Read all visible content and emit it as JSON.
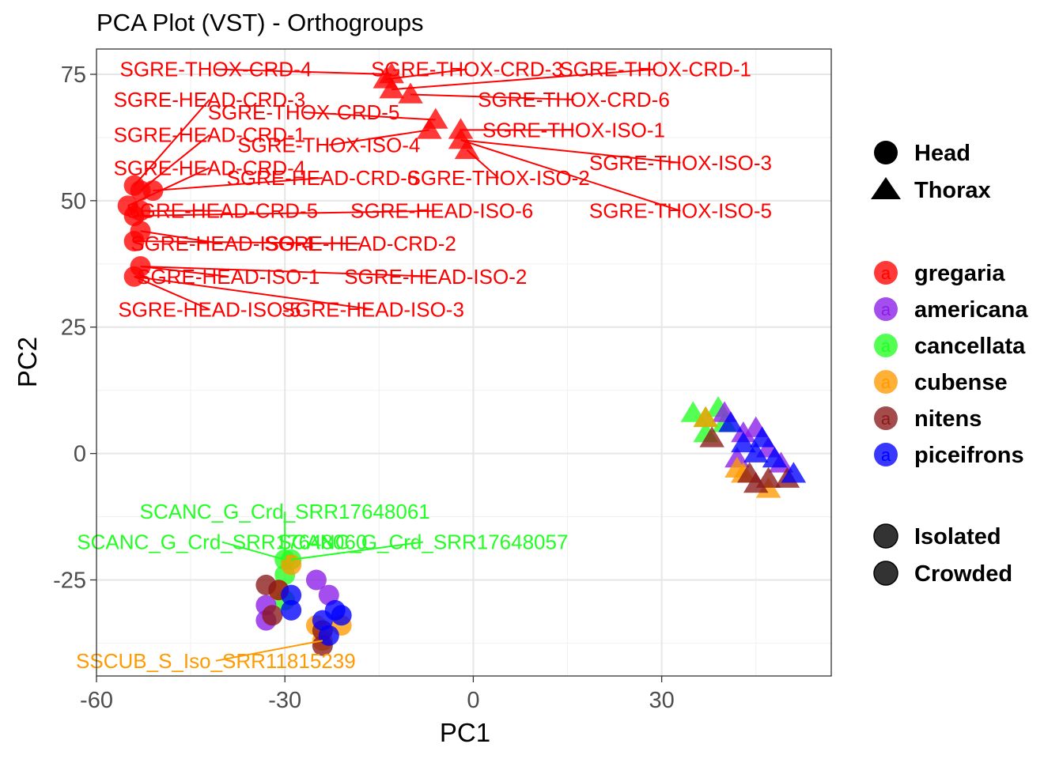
{
  "chart_data": {
    "type": "scatter",
    "title": "PCA Plot (VST) - Orthogroups",
    "xlabel": "PC1",
    "ylabel": "PC2",
    "xlim": [
      -60,
      57
    ],
    "ylim": [
      -44,
      80
    ],
    "grid": true,
    "x_ticks": [
      -60,
      -30,
      0,
      30
    ],
    "x_tick_labels": [
      "-60",
      "-30",
      "0",
      "30"
    ],
    "y_ticks": [
      -25,
      0,
      25,
      50,
      75
    ],
    "y_tick_labels": [
      "-25",
      "0",
      "25",
      "50",
      "75"
    ],
    "legend_placement": "right",
    "colors": {
      "gregaria": "#ff0000",
      "americana": "#8a1ee8",
      "cancellata": "#22ff22",
      "cubense": "#ff9a00",
      "nitens": "#8b1a1a",
      "piceifrons": "#0000ff"
    },
    "legends": {
      "tissue": [
        {
          "label": "Head",
          "shape": "circle"
        },
        {
          "label": "Thorax",
          "shape": "triangle"
        }
      ],
      "species": [
        {
          "label": "gregaria",
          "key": "gregaria"
        },
        {
          "label": "americana",
          "key": "americana"
        },
        {
          "label": "cancellata",
          "key": "cancellata"
        },
        {
          "label": "cubense",
          "key": "cubense"
        },
        {
          "label": "nitens",
          "key": "nitens"
        },
        {
          "label": "piceifrons",
          "key": "piceifrons"
        }
      ],
      "phase": [
        {
          "label": "Isolated",
          "shape": "circle"
        },
        {
          "label": "Crowded",
          "shape": "circle"
        }
      ]
    },
    "points": [
      {
        "x": -13,
        "y": 75,
        "shape": "triangle",
        "species": "gregaria"
      },
      {
        "x": -14,
        "y": 74,
        "shape": "triangle",
        "species": "gregaria"
      },
      {
        "x": -13,
        "y": 72,
        "shape": "triangle",
        "species": "gregaria"
      },
      {
        "x": -10,
        "y": 71,
        "shape": "triangle",
        "species": "gregaria"
      },
      {
        "x": -6,
        "y": 66,
        "shape": "triangle",
        "species": "gregaria"
      },
      {
        "x": -7,
        "y": 64,
        "shape": "triangle",
        "species": "gregaria"
      },
      {
        "x": -2,
        "y": 64,
        "shape": "triangle",
        "species": "gregaria"
      },
      {
        "x": -2,
        "y": 62,
        "shape": "triangle",
        "species": "gregaria"
      },
      {
        "x": -1,
        "y": 60,
        "shape": "triangle",
        "species": "gregaria"
      },
      {
        "x": -54,
        "y": 53,
        "shape": "circle",
        "species": "gregaria"
      },
      {
        "x": -53,
        "y": 52,
        "shape": "circle",
        "species": "gregaria"
      },
      {
        "x": -51,
        "y": 52,
        "shape": "circle",
        "species": "gregaria"
      },
      {
        "x": -55,
        "y": 49,
        "shape": "circle",
        "species": "gregaria"
      },
      {
        "x": -53,
        "y": 48,
        "shape": "circle",
        "species": "gregaria"
      },
      {
        "x": -54,
        "y": 47,
        "shape": "circle",
        "species": "gregaria"
      },
      {
        "x": -53,
        "y": 44,
        "shape": "circle",
        "species": "gregaria"
      },
      {
        "x": -54,
        "y": 42,
        "shape": "circle",
        "species": "gregaria"
      },
      {
        "x": -53,
        "y": 37,
        "shape": "circle",
        "species": "gregaria"
      },
      {
        "x": -54,
        "y": 35,
        "shape": "circle",
        "species": "gregaria"
      },
      {
        "x": 35,
        "y": 8,
        "shape": "triangle",
        "species": "cancellata"
      },
      {
        "x": 37,
        "y": 7,
        "shape": "triangle",
        "species": "cancellata"
      },
      {
        "x": 39,
        "y": 9,
        "shape": "triangle",
        "species": "cancellata"
      },
      {
        "x": 37,
        "y": 4,
        "shape": "triangle",
        "species": "cancellata"
      },
      {
        "x": 40,
        "y": 6,
        "shape": "triangle",
        "species": "cancellata"
      },
      {
        "x": 40,
        "y": 8,
        "shape": "triangle",
        "species": "americana"
      },
      {
        "x": 43,
        "y": 4,
        "shape": "triangle",
        "species": "americana"
      },
      {
        "x": 45,
        "y": 5,
        "shape": "triangle",
        "species": "americana"
      },
      {
        "x": 47,
        "y": 1,
        "shape": "triangle",
        "species": "americana"
      },
      {
        "x": 49,
        "y": -2,
        "shape": "triangle",
        "species": "americana"
      },
      {
        "x": 42,
        "y": -1,
        "shape": "triangle",
        "species": "americana"
      },
      {
        "x": 37,
        "y": 7,
        "shape": "triangle",
        "species": "cubense"
      },
      {
        "x": 42,
        "y": -3,
        "shape": "triangle",
        "species": "cubense"
      },
      {
        "x": 43,
        "y": -4,
        "shape": "triangle",
        "species": "cubense"
      },
      {
        "x": 47,
        "y": -7,
        "shape": "triangle",
        "species": "cubense"
      },
      {
        "x": 38,
        "y": 3,
        "shape": "triangle",
        "species": "nitens"
      },
      {
        "x": 44,
        "y": -4,
        "shape": "triangle",
        "species": "nitens"
      },
      {
        "x": 45,
        "y": -6,
        "shape": "triangle",
        "species": "nitens"
      },
      {
        "x": 47,
        "y": -5,
        "shape": "triangle",
        "species": "nitens"
      },
      {
        "x": 50,
        "y": -5,
        "shape": "triangle",
        "species": "nitens"
      },
      {
        "x": 41,
        "y": 6,
        "shape": "triangle",
        "species": "piceifrons"
      },
      {
        "x": 43,
        "y": 2,
        "shape": "triangle",
        "species": "piceifrons"
      },
      {
        "x": 46,
        "y": 3,
        "shape": "triangle",
        "species": "piceifrons"
      },
      {
        "x": 45,
        "y": 0,
        "shape": "triangle",
        "species": "piceifrons"
      },
      {
        "x": 48,
        "y": -1,
        "shape": "triangle",
        "species": "piceifrons"
      },
      {
        "x": 51,
        "y": -4,
        "shape": "triangle",
        "species": "piceifrons"
      },
      {
        "x": -30,
        "y": -21,
        "shape": "circle",
        "species": "cancellata"
      },
      {
        "x": -29,
        "y": -21,
        "shape": "circle",
        "species": "cancellata"
      },
      {
        "x": -30,
        "y": -24,
        "shape": "circle",
        "species": "cancellata"
      },
      {
        "x": -30,
        "y": -29,
        "shape": "circle",
        "species": "cancellata"
      },
      {
        "x": -25,
        "y": -25,
        "shape": "circle",
        "species": "americana"
      },
      {
        "x": -23,
        "y": -28,
        "shape": "circle",
        "species": "americana"
      },
      {
        "x": -33,
        "y": -30,
        "shape": "circle",
        "species": "americana"
      },
      {
        "x": -33,
        "y": -33,
        "shape": "circle",
        "species": "americana"
      },
      {
        "x": -29,
        "y": -22,
        "shape": "circle",
        "species": "cubense"
      },
      {
        "x": -31,
        "y": -27,
        "shape": "circle",
        "species": "cubense"
      },
      {
        "x": -25,
        "y": -34,
        "shape": "circle",
        "species": "cubense"
      },
      {
        "x": -21,
        "y": -34,
        "shape": "circle",
        "species": "cubense"
      },
      {
        "x": -24,
        "y": -37,
        "shape": "circle",
        "species": "cubense"
      },
      {
        "x": -33,
        "y": -26,
        "shape": "circle",
        "species": "nitens"
      },
      {
        "x": -31,
        "y": -27,
        "shape": "circle",
        "species": "nitens"
      },
      {
        "x": -32,
        "y": -32,
        "shape": "circle",
        "species": "nitens"
      },
      {
        "x": -24,
        "y": -35,
        "shape": "circle",
        "species": "nitens"
      },
      {
        "x": -24,
        "y": -38,
        "shape": "circle",
        "species": "nitens"
      },
      {
        "x": -29,
        "y": -28,
        "shape": "circle",
        "species": "piceifrons"
      },
      {
        "x": -29,
        "y": -31,
        "shape": "circle",
        "species": "piceifrons"
      },
      {
        "x": -24,
        "y": -33,
        "shape": "circle",
        "species": "piceifrons"
      },
      {
        "x": -22,
        "y": -31,
        "shape": "circle",
        "species": "piceifrons"
      },
      {
        "x": -21,
        "y": -32,
        "shape": "circle",
        "species": "piceifrons"
      },
      {
        "x": -23,
        "y": -36,
        "shape": "circle",
        "species": "piceifrons"
      }
    ],
    "labels": [
      {
        "text": "SGRE-THOX-CRD-4",
        "x": -41,
        "y": 76,
        "px": -13,
        "py": 75,
        "color": "#ff0000"
      },
      {
        "text": "SGRE-THOX-CRD-3",
        "x": -1,
        "y": 76,
        "px": -14,
        "py": 74,
        "color": "#ff0000"
      },
      {
        "text": "SGRE-THOX-CRD-1",
        "x": 29,
        "y": 76,
        "px": -13,
        "py": 72,
        "color": "#ff0000"
      },
      {
        "text": "SGRE-THOX-CRD-6",
        "x": 16,
        "y": 70,
        "px": -10,
        "py": 71,
        "color": "#ff0000"
      },
      {
        "text": "SGRE-THOX-CRD-5",
        "x": -27,
        "y": 67.5,
        "px": -6,
        "py": 66,
        "color": "#ff0000"
      },
      {
        "text": "SGRE-THOX-ISO-1",
        "x": 16,
        "y": 64,
        "px": -2,
        "py": 64,
        "color": "#ff0000"
      },
      {
        "text": "SGRE-THOX-ISO-4",
        "x": -23,
        "y": 61,
        "px": -7,
        "py": 64,
        "color": "#ff0000"
      },
      {
        "text": "SGRE-THOX-ISO-3",
        "x": 33,
        "y": 57.5,
        "px": -2,
        "py": 62,
        "color": "#ff0000"
      },
      {
        "text": "SGRE-THOX-ISO-2",
        "x": 4,
        "y": 54.5,
        "px": -1,
        "py": 60,
        "color": "#ff0000"
      },
      {
        "text": "SGRE-THOX-ISO-5",
        "x": 33,
        "y": 48,
        "px": -2,
        "py": 62,
        "color": "#ff0000"
      },
      {
        "text": "SGRE-HEAD-CRD-3",
        "x": -42,
        "y": 70,
        "px": -54,
        "py": 53,
        "color": "#ff0000"
      },
      {
        "text": "SGRE-HEAD-CRD-1",
        "x": -42,
        "y": 63,
        "px": -53,
        "py": 52,
        "color": "#ff0000"
      },
      {
        "text": "SGRE-HEAD-CRD-4",
        "x": -42,
        "y": 56.5,
        "px": -55,
        "py": 49,
        "color": "#ff0000"
      },
      {
        "text": "SGRE-HEAD-CRD-6",
        "x": -24,
        "y": 54.5,
        "px": -51,
        "py": 52,
        "color": "#ff0000"
      },
      {
        "text": "SGRE-HEAD-CRD-5",
        "x": -40,
        "y": 48,
        "px": -53,
        "py": 48,
        "color": "#ff0000"
      },
      {
        "text": "SGRE-HEAD-ISO-6",
        "x": -5,
        "y": 48,
        "px": -54,
        "py": 47,
        "color": "#ff0000"
      },
      {
        "text": "SGRE-HEAD-ISO-4",
        "x": -40,
        "y": 41.5,
        "px": -53,
        "py": 44,
        "color": "#ff0000"
      },
      {
        "text": "SGRE-HEAD-CRD-2",
        "x": -18,
        "y": 41.5,
        "px": -54,
        "py": 42,
        "color": "#ff0000"
      },
      {
        "text": "SGRE-HEAD-ISO-1",
        "x": -39,
        "y": 35,
        "px": -53,
        "py": 37,
        "color": "#ff0000"
      },
      {
        "text": "SGRE-HEAD-ISO-2",
        "x": -6,
        "y": 35,
        "px": -53,
        "py": 37,
        "color": "#ff0000"
      },
      {
        "text": "SGRE-HEAD-ISO-5",
        "x": -42,
        "y": 28.5,
        "px": -54,
        "py": 35,
        "color": "#ff0000"
      },
      {
        "text": "SGRE-HEAD-ISO-3",
        "x": -16,
        "y": 28.5,
        "px": -54,
        "py": 35,
        "color": "#ff0000"
      },
      {
        "text": "SCANC_G_Crd_SRR17648061",
        "x": -30,
        "y": -11.5,
        "px": -30,
        "py": -21,
        "color": "#22ff22"
      },
      {
        "text": "SCANC_G_Crd_SRR17648060",
        "x": -40,
        "y": -17.5,
        "px": -30,
        "py": -21,
        "color": "#22ff22"
      },
      {
        "text": "SCANC_G_Crd_SRR17648057",
        "x": -8,
        "y": -17.5,
        "px": -29,
        "py": -21,
        "color": "#22ff22"
      },
      {
        "text": "SSCUB_S_Iso_SRR11815239",
        "x": -41,
        "y": -41,
        "px": -24,
        "py": -37,
        "color": "#ff9a00"
      }
    ]
  }
}
